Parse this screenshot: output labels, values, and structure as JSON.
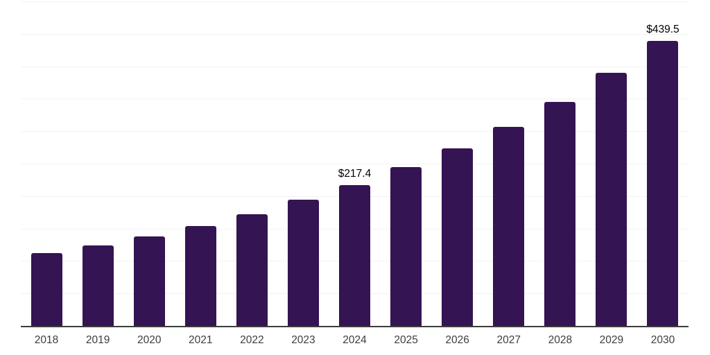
{
  "chart_data": {
    "type": "bar",
    "title": "",
    "xlabel": "",
    "ylabel": "",
    "categories": [
      "2018",
      "2019",
      "2020",
      "2021",
      "2022",
      "2023",
      "2024",
      "2025",
      "2026",
      "2027",
      "2028",
      "2029",
      "2030"
    ],
    "values": [
      111.7,
      124.0,
      137.5,
      154.2,
      172.5,
      194.3,
      217.4,
      245.0,
      273.7,
      307.0,
      345.0,
      390.0,
      439.5
    ],
    "data_labels": [
      "",
      "",
      "",
      "",
      "",
      "",
      "$217.4",
      "",
      "",
      "",
      "",
      "",
      "$439.5"
    ],
    "value_prefix": "$",
    "ylim": [
      0,
      500
    ],
    "grid_step": 50,
    "grid": true,
    "legend": false,
    "y_axis_labels_visible": false,
    "colors": {
      "bar": "#341452",
      "grid": "#f2f2f2",
      "axis": "#3c3c3c",
      "tick_label": "#3d3d3d",
      "data_label": "#000000",
      "background": "#ffffff"
    }
  }
}
